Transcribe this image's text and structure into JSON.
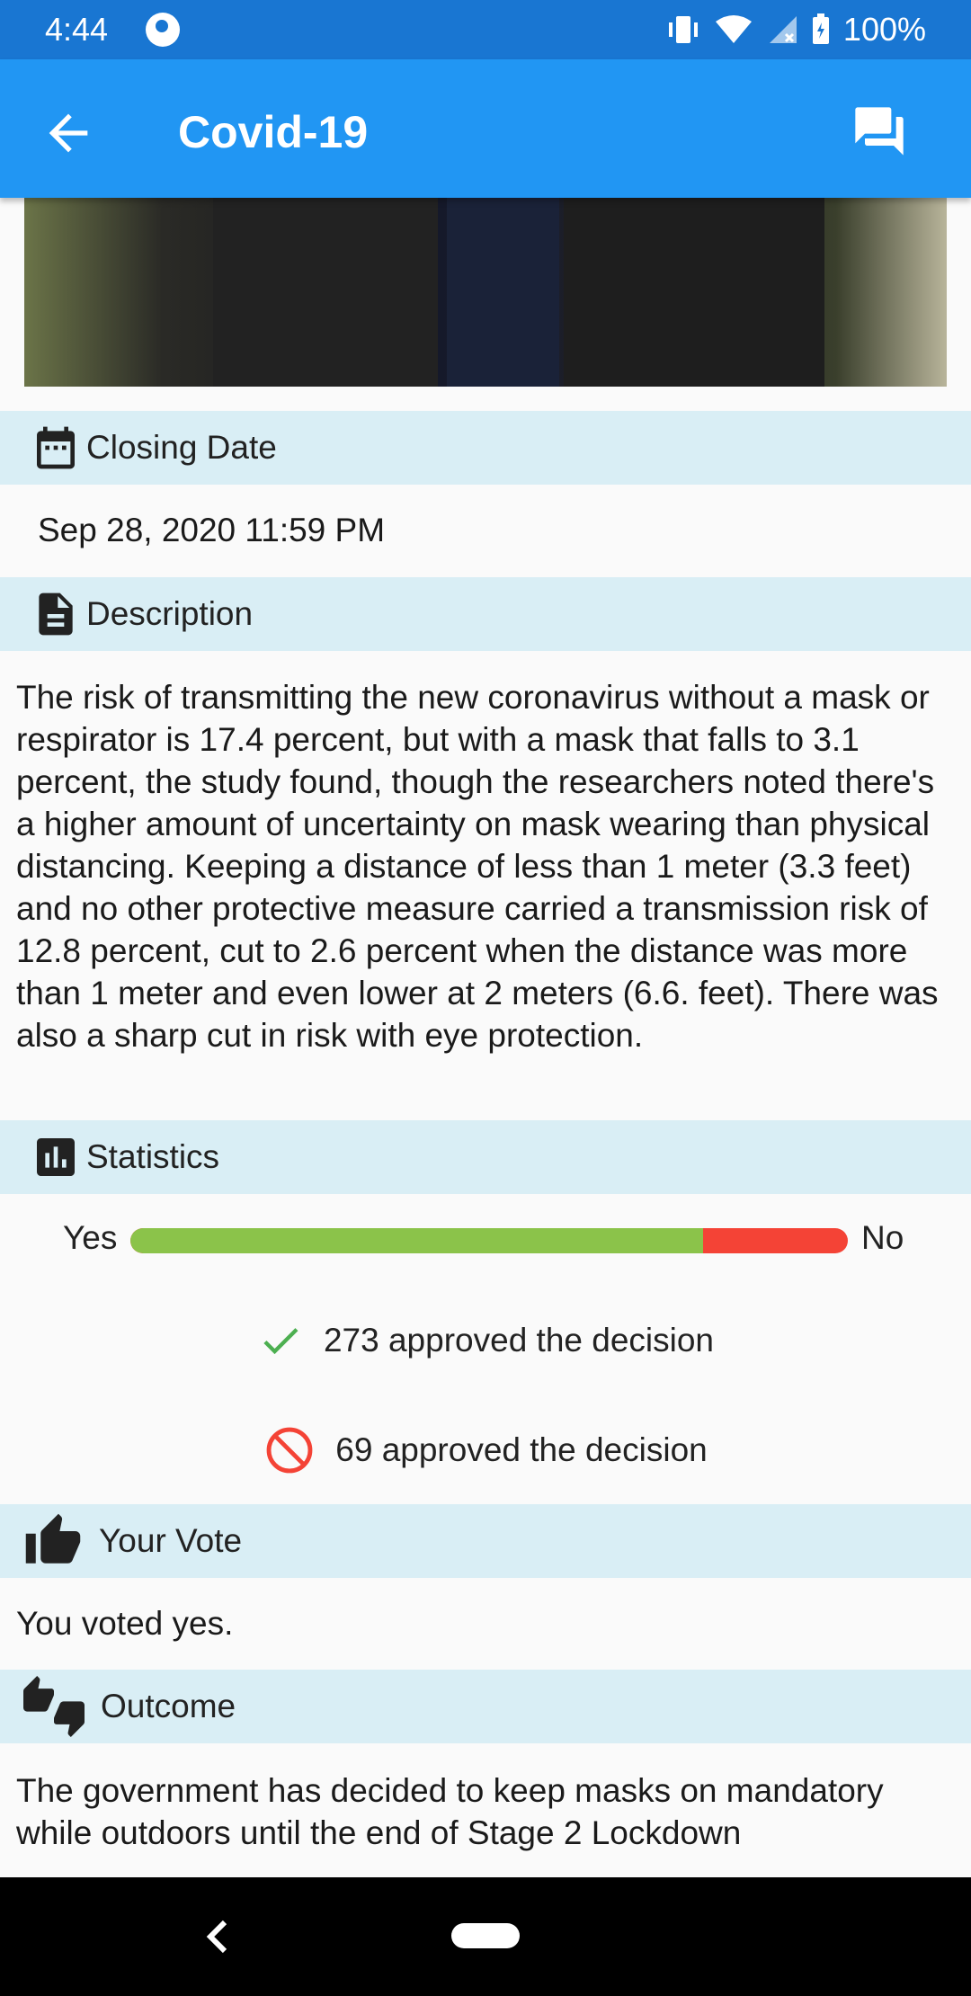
{
  "status_bar": {
    "time": "4:44",
    "battery": "100%"
  },
  "app_bar": {
    "title": "Covid-19"
  },
  "hero": {
    "alt": "Person wearing a black coat"
  },
  "closing": {
    "header": "Closing Date",
    "value": "Sep 28, 2020 11:59 PM"
  },
  "description": {
    "header": "Description",
    "text": "The risk of transmitting the new coronavirus without a mask or respirator is 17.4 percent, but with a mask that falls to 3.1 percent,  the study found, though the researchers  noted there's a higher amount of uncertainty on mask wearing than physical distancing. Keeping a distance of less than 1 meter (3.3 feet)  and no other protective measure carried a transmission risk of 12.8 percent, cut to 2.6 percent when the distance was more than 1 meter and even lower at  2 meters (6.6. feet). There was also a sharp cut in risk with eye protection."
  },
  "statistics": {
    "header": "Statistics",
    "yes_label": "Yes",
    "no_label": "No",
    "yes_fraction": 0.798,
    "approved_text": "273 approved the decision",
    "rejected_text": "69 approved the decision",
    "colors": {
      "yes": "#8bc34a",
      "no": "#f44336"
    }
  },
  "vote": {
    "header": "Your Vote",
    "text": "You voted yes."
  },
  "outcome": {
    "header": "Outcome",
    "text": "The government has decided to keep masks on mandatory while outdoors until the end of Stage 2 Lockdown"
  }
}
